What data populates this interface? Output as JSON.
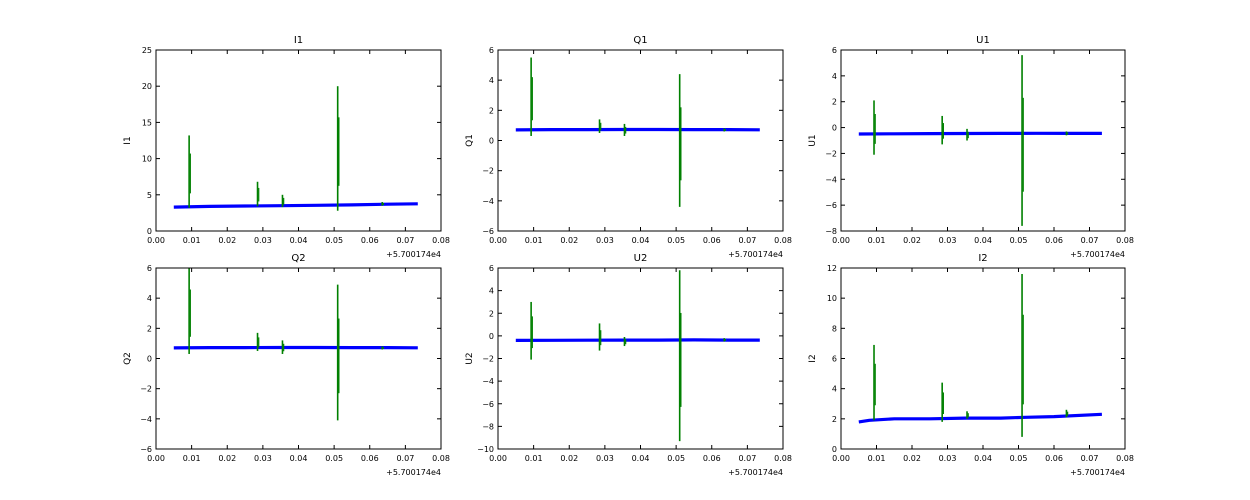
{
  "chart_data": [
    {
      "type": "line",
      "title": "I1",
      "ylabel": "I1",
      "xoffset": "+5.700174e4",
      "xlim": [
        0.0,
        0.08
      ],
      "ylim": [
        0,
        25
      ],
      "xticks": [
        "0.00",
        "0.01",
        "0.02",
        "0.03",
        "0.04",
        "0.05",
        "0.06",
        "0.07",
        "0.08"
      ],
      "yticks": [
        "0",
        "5",
        "10",
        "15",
        "20",
        "25"
      ],
      "series": [
        {
          "color": "#0000ff",
          "x": [
            0.005,
            0.015,
            0.025,
            0.035,
            0.045,
            0.055,
            0.065,
            0.0735
          ],
          "y": [
            3.3,
            3.4,
            3.45,
            3.5,
            3.55,
            3.6,
            3.7,
            3.75
          ]
        },
        {
          "color": "#008000",
          "spikes": [
            [
              0.0093,
              3.2,
              13.2
            ],
            [
              0.0285,
              3.4,
              6.8
            ],
            [
              0.0355,
              3.3,
              5.0
            ],
            [
              0.051,
              2.8,
              20.0
            ],
            [
              0.0635,
              3.5,
              4.0
            ]
          ]
        }
      ]
    },
    {
      "type": "line",
      "title": "Q1",
      "ylabel": "Q1",
      "xoffset": "+5.700174e4",
      "xlim": [
        0.0,
        0.08
      ],
      "ylim": [
        -6,
        6
      ],
      "xticks": [
        "0.00",
        "0.01",
        "0.02",
        "0.03",
        "0.04",
        "0.05",
        "0.06",
        "0.07",
        "0.08"
      ],
      "yticks": [
        "−6",
        "−4",
        "−2",
        "0",
        "2",
        "4",
        "6"
      ],
      "series": [
        {
          "color": "#0000ff",
          "x": [
            0.005,
            0.015,
            0.025,
            0.035,
            0.045,
            0.055,
            0.065,
            0.0735
          ],
          "y": [
            0.7,
            0.72,
            0.72,
            0.73,
            0.73,
            0.72,
            0.72,
            0.71
          ]
        },
        {
          "color": "#008000",
          "spikes": [
            [
              0.0093,
              0.3,
              5.5
            ],
            [
              0.0285,
              0.5,
              1.4
            ],
            [
              0.0355,
              0.3,
              1.1
            ],
            [
              0.051,
              -4.4,
              4.4
            ],
            [
              0.0635,
              0.6,
              0.8
            ]
          ]
        }
      ]
    },
    {
      "type": "line",
      "title": "U1",
      "ylabel": "U1",
      "xoffset": "+5.700174e4",
      "xlim": [
        0.0,
        0.08
      ],
      "ylim": [
        -8,
        6
      ],
      "xticks": [
        "0.00",
        "0.01",
        "0.02",
        "0.03",
        "0.04",
        "0.05",
        "0.06",
        "0.07",
        "0.08"
      ],
      "yticks": [
        "−8",
        "−6",
        "−4",
        "−2",
        "0",
        "2",
        "4",
        "6"
      ],
      "series": [
        {
          "color": "#0000ff",
          "x": [
            0.005,
            0.015,
            0.025,
            0.035,
            0.045,
            0.055,
            0.065,
            0.0735
          ],
          "y": [
            -0.5,
            -0.48,
            -0.47,
            -0.46,
            -0.45,
            -0.44,
            -0.45,
            -0.45
          ]
        },
        {
          "color": "#008000",
          "spikes": [
            [
              0.0093,
              -2.1,
              2.1
            ],
            [
              0.0285,
              -1.3,
              0.9
            ],
            [
              0.0355,
              -1.0,
              -0.1
            ],
            [
              0.051,
              -7.6,
              5.6
            ],
            [
              0.0635,
              -0.6,
              -0.3
            ]
          ]
        }
      ]
    },
    {
      "type": "line",
      "title": "Q2",
      "ylabel": "Q2",
      "xoffset": "+5.700174e4",
      "xlim": [
        0.0,
        0.08
      ],
      "ylim": [
        -6,
        6
      ],
      "xticks": [
        "0.00",
        "0.01",
        "0.02",
        "0.03",
        "0.04",
        "0.05",
        "0.06",
        "0.07",
        "0.08"
      ],
      "yticks": [
        "−6",
        "−4",
        "−2",
        "0",
        "2",
        "4",
        "6"
      ],
      "series": [
        {
          "color": "#0000ff",
          "x": [
            0.005,
            0.015,
            0.025,
            0.035,
            0.045,
            0.055,
            0.065,
            0.0735
          ],
          "y": [
            0.7,
            0.72,
            0.72,
            0.73,
            0.73,
            0.72,
            0.72,
            0.71
          ]
        },
        {
          "color": "#008000",
          "spikes": [
            [
              0.0093,
              0.3,
              6.0
            ],
            [
              0.0285,
              0.5,
              1.7
            ],
            [
              0.0355,
              0.3,
              1.2
            ],
            [
              0.051,
              -4.1,
              4.9
            ],
            [
              0.0635,
              0.6,
              0.8
            ]
          ]
        }
      ]
    },
    {
      "type": "line",
      "title": "U2",
      "ylabel": "U2",
      "xoffset": "+5.700174e4",
      "xlim": [
        0.0,
        0.08
      ],
      "ylim": [
        -10,
        6
      ],
      "xticks": [
        "0.00",
        "0.01",
        "0.02",
        "0.03",
        "0.04",
        "0.05",
        "0.06",
        "0.07",
        "0.08"
      ],
      "yticks": [
        "−10",
        "−8",
        "−6",
        "−4",
        "−2",
        "0",
        "2",
        "4",
        "6"
      ],
      "series": [
        {
          "color": "#0000ff",
          "x": [
            0.005,
            0.015,
            0.025,
            0.035,
            0.045,
            0.055,
            0.065,
            0.0735
          ],
          "y": [
            -0.4,
            -0.39,
            -0.38,
            -0.37,
            -0.37,
            -0.36,
            -0.37,
            -0.37
          ]
        },
        {
          "color": "#008000",
          "spikes": [
            [
              0.0093,
              -2.1,
              3.0
            ],
            [
              0.0285,
              -1.3,
              1.1
            ],
            [
              0.0355,
              -0.9,
              -0.1
            ],
            [
              0.051,
              -9.3,
              5.8
            ],
            [
              0.0635,
              -0.5,
              -0.2
            ]
          ]
        }
      ]
    },
    {
      "type": "line",
      "title": "I2",
      "ylabel": "I2",
      "xoffset": "+5.700174e4",
      "xlim": [
        0.0,
        0.08
      ],
      "ylim": [
        0,
        12
      ],
      "xticks": [
        "0.00",
        "0.01",
        "0.02",
        "0.03",
        "0.04",
        "0.05",
        "0.06",
        "0.07",
        "0.08"
      ],
      "yticks": [
        "0",
        "2",
        "4",
        "6",
        "8",
        "10",
        "12"
      ],
      "series": [
        {
          "color": "#0000ff",
          "x": [
            0.005,
            0.008,
            0.015,
            0.025,
            0.035,
            0.045,
            0.052,
            0.06,
            0.0735
          ],
          "y": [
            1.8,
            1.9,
            2.0,
            2.0,
            2.05,
            2.05,
            2.1,
            2.15,
            2.3
          ]
        },
        {
          "color": "#008000",
          "spikes": [
            [
              0.0093,
              1.9,
              6.9
            ],
            [
              0.0285,
              1.8,
              4.4
            ],
            [
              0.0355,
              2.0,
              2.5
            ],
            [
              0.051,
              0.8,
              11.6
            ],
            [
              0.0635,
              2.1,
              2.6
            ]
          ]
        }
      ]
    }
  ]
}
